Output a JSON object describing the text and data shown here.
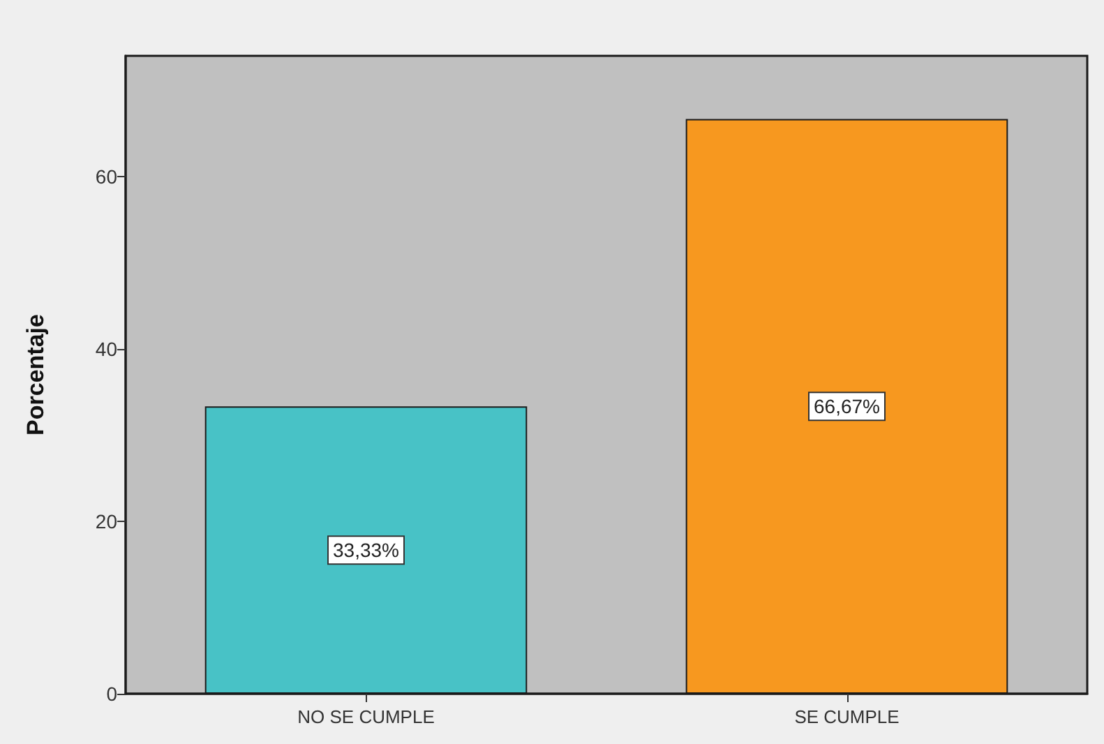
{
  "chart_data": {
    "type": "bar",
    "ylabel": "Porcentaje",
    "categories": [
      "NO SE CUMPLE",
      "SE CUMPLE"
    ],
    "values": [
      33.33,
      66.67
    ],
    "colors": [
      "#48c2c6",
      "#f7981f"
    ],
    "value_labels": [
      "33,33%",
      "66,67%"
    ],
    "ylim": [
      0,
      74
    ],
    "yticks": [
      0,
      20,
      40,
      60
    ]
  }
}
